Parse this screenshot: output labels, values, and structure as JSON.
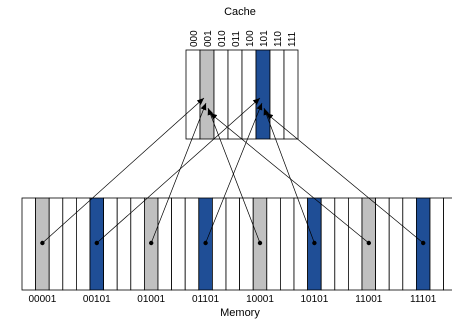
{
  "cache": {
    "title": "Cache",
    "indices": [
      "000",
      "001",
      "010",
      "011",
      "100",
      "101",
      "110",
      "111"
    ],
    "highlight": {
      "001": "#c0c0c0",
      "101": "#1f4e96"
    }
  },
  "memory": {
    "title": "Memory",
    "labels": [
      "00001",
      "00101",
      "01001",
      "01101",
      "10001",
      "10101",
      "11001",
      "11101"
    ],
    "cells_per_group": 4,
    "highlight_cell": 1,
    "highlight_colors": [
      "#c0c0c0",
      "#1f4e96"
    ],
    "arrows": [
      {
        "from": "00001",
        "to": "001"
      },
      {
        "from": "00101",
        "to": "101"
      },
      {
        "from": "01001",
        "to": "001"
      },
      {
        "from": "01101",
        "to": "101"
      },
      {
        "from": "10001",
        "to": "001"
      },
      {
        "from": "10101",
        "to": "101"
      },
      {
        "from": "11001",
        "to": "001"
      },
      {
        "from": "11101",
        "to": "101"
      }
    ]
  },
  "colors": {
    "stroke": "#000000",
    "gray": "#c0c0c0",
    "blue": "#1f4e96"
  }
}
